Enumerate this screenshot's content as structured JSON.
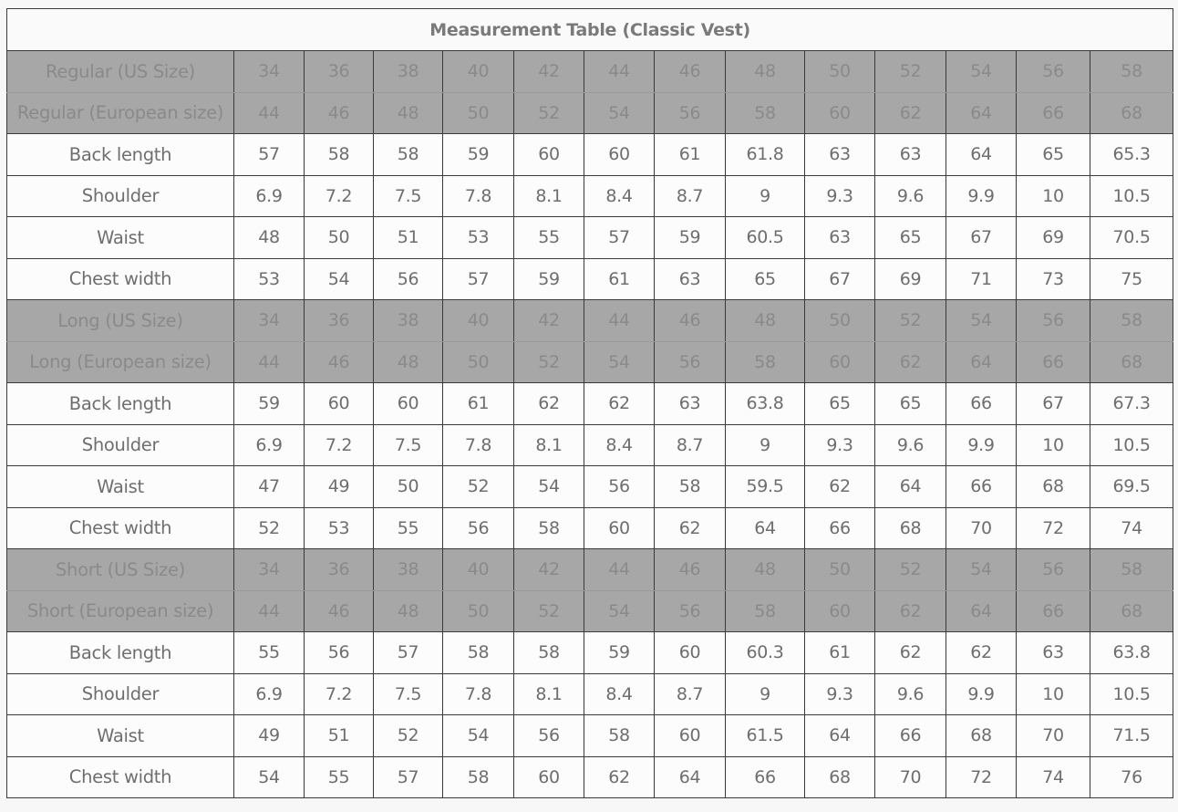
{
  "title": "Measurement Table (Classic Vest)",
  "sections": [
    {
      "us_label": "Regular (US Size)",
      "us_sizes": [
        "34",
        "36",
        "38",
        "40",
        "42",
        "44",
        "46",
        "48",
        "50",
        "52",
        "54",
        "56",
        "58"
      ],
      "eu_label": "Regular (European size)",
      "eu_sizes": [
        "44",
        "46",
        "48",
        "50",
        "52",
        "54",
        "56",
        "58",
        "60",
        "62",
        "64",
        "66",
        "68"
      ],
      "rows": [
        {
          "label": "Back length",
          "values": [
            "57",
            "58",
            "58",
            "59",
            "60",
            "60",
            "61",
            "61.8",
            "63",
            "63",
            "64",
            "65",
            "65.3"
          ]
        },
        {
          "label": "Shoulder",
          "values": [
            "6.9",
            "7.2",
            "7.5",
            "7.8",
            "8.1",
            "8.4",
            "8.7",
            "9",
            "9.3",
            "9.6",
            "9.9",
            "10",
            "10.5"
          ]
        },
        {
          "label": "Waist",
          "values": [
            "48",
            "50",
            "51",
            "53",
            "55",
            "57",
            "59",
            "60.5",
            "63",
            "65",
            "67",
            "69",
            "70.5"
          ]
        },
        {
          "label": "Chest width",
          "values": [
            "53",
            "54",
            "56",
            "57",
            "59",
            "61",
            "63",
            "65",
            "67",
            "69",
            "71",
            "73",
            "75"
          ]
        }
      ]
    },
    {
      "us_label": "Long (US Size)",
      "us_sizes": [
        "34",
        "36",
        "38",
        "40",
        "42",
        "44",
        "46",
        "48",
        "50",
        "52",
        "54",
        "56",
        "58"
      ],
      "eu_label": "Long (European size)",
      "eu_sizes": [
        "44",
        "46",
        "48",
        "50",
        "52",
        "54",
        "56",
        "58",
        "60",
        "62",
        "64",
        "66",
        "68"
      ],
      "rows": [
        {
          "label": "Back length",
          "values": [
            "59",
            "60",
            "60",
            "61",
            "62",
            "62",
            "63",
            "63.8",
            "65",
            "65",
            "66",
            "67",
            "67.3"
          ]
        },
        {
          "label": "Shoulder",
          "values": [
            "6.9",
            "7.2",
            "7.5",
            "7.8",
            "8.1",
            "8.4",
            "8.7",
            "9",
            "9.3",
            "9.6",
            "9.9",
            "10",
            "10.5"
          ]
        },
        {
          "label": "Waist",
          "values": [
            "47",
            "49",
            "50",
            "52",
            "54",
            "56",
            "58",
            "59.5",
            "62",
            "64",
            "66",
            "68",
            "69.5"
          ]
        },
        {
          "label": "Chest width",
          "values": [
            "52",
            "53",
            "55",
            "56",
            "58",
            "60",
            "62",
            "64",
            "66",
            "68",
            "70",
            "72",
            "74"
          ]
        }
      ]
    },
    {
      "us_label": "Short (US Size)",
      "us_sizes": [
        "34",
        "36",
        "38",
        "40",
        "42",
        "44",
        "46",
        "48",
        "50",
        "52",
        "54",
        "56",
        "58"
      ],
      "eu_label": "Short (European size)",
      "eu_sizes": [
        "44",
        "46",
        "48",
        "50",
        "52",
        "54",
        "56",
        "58",
        "60",
        "62",
        "64",
        "66",
        "68"
      ],
      "rows": [
        {
          "label": "Back length",
          "values": [
            "55",
            "56",
            "57",
            "58",
            "58",
            "59",
            "60",
            "60.3",
            "61",
            "62",
            "62",
            "63",
            "63.8"
          ]
        },
        {
          "label": "Shoulder",
          "values": [
            "6.9",
            "7.2",
            "7.5",
            "7.8",
            "8.1",
            "8.4",
            "8.7",
            "9",
            "9.3",
            "9.6",
            "9.9",
            "10",
            "10.5"
          ]
        },
        {
          "label": "Waist",
          "values": [
            "49",
            "51",
            "52",
            "54",
            "56",
            "58",
            "60",
            "61.5",
            "64",
            "66",
            "68",
            "70",
            "71.5"
          ]
        },
        {
          "label": "Chest width",
          "values": [
            "54",
            "55",
            "57",
            "58",
            "60",
            "62",
            "64",
            "66",
            "68",
            "70",
            "72",
            "74",
            "76"
          ]
        }
      ]
    }
  ],
  "colors": {
    "size_row_bg": "#a7a7a7",
    "border": "#3a3a3a",
    "text": "#6e6e6e"
  }
}
